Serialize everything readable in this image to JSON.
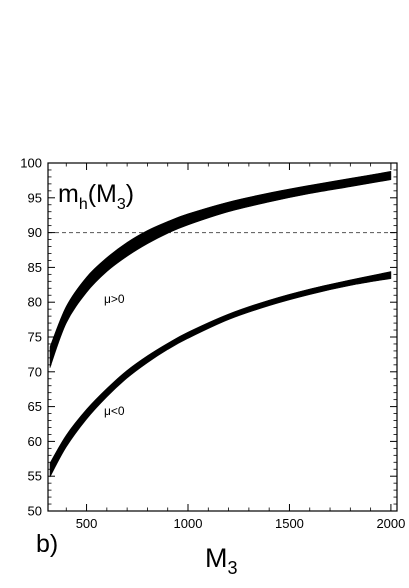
{
  "chart_data": {
    "type": "area",
    "title": "",
    "xlabel": "M",
    "xlabel_sub": "3",
    "ylabel": "",
    "xlim": [
      310,
      2030
    ],
    "ylim": [
      50,
      100
    ],
    "x_ticks": [
      500,
      1000,
      1500,
      2000
    ],
    "y_ticks": [
      50,
      55,
      60,
      65,
      70,
      75,
      80,
      85,
      90,
      95,
      100
    ],
    "panel_label": "b)",
    "inset_label": {
      "main": "m",
      "sub1": "h",
      "open": "(M",
      "sub2": "3",
      "close": ")"
    },
    "reference_line": {
      "y": 90,
      "style": "dashed"
    },
    "series": [
      {
        "label": "μ>0",
        "x": [
          320,
          400,
          500,
          600,
          700,
          800,
          900,
          1000,
          1200,
          1400,
          1600,
          1800,
          2000
        ],
        "lower": [
          70.6,
          77.0,
          81.4,
          84.4,
          86.6,
          88.4,
          89.9,
          91.1,
          93.0,
          94.4,
          95.6,
          96.6,
          97.6
        ],
        "upper": [
          73.6,
          79.4,
          83.6,
          86.4,
          88.6,
          90.3,
          91.6,
          92.7,
          94.4,
          95.7,
          96.8,
          97.8,
          98.8
        ]
      },
      {
        "label": "μ<0",
        "x": [
          320,
          400,
          500,
          600,
          700,
          800,
          900,
          1000,
          1200,
          1400,
          1600,
          1800,
          2000
        ],
        "lower": [
          54.9,
          59.2,
          63.2,
          66.4,
          69.1,
          71.3,
          73.2,
          74.8,
          77.5,
          79.5,
          81.1,
          82.4,
          83.4
        ],
        "upper": [
          56.9,
          60.9,
          64.6,
          67.6,
          70.2,
          72.3,
          74.1,
          75.7,
          78.3,
          80.3,
          81.9,
          83.2,
          84.4
        ]
      }
    ]
  }
}
